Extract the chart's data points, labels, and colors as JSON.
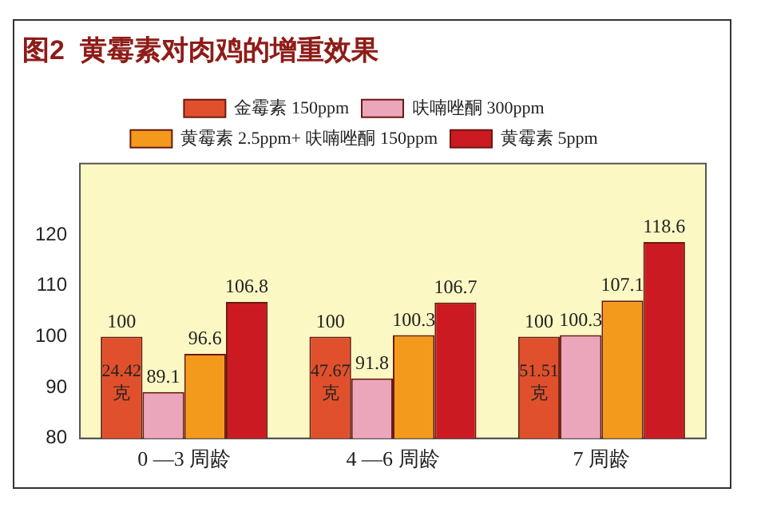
{
  "chart_data": {
    "type": "bar",
    "title": "图2  黄霉素对肉鸡的增重效果",
    "categories": [
      "0 —3 周龄",
      "4 —6 周龄",
      "7 周龄"
    ],
    "series": [
      {
        "name": "金霉素 150ppm",
        "color": "#e0502c",
        "values": [
          100,
          100,
          100
        ]
      },
      {
        "name": "呋喃唑酮 300ppm",
        "color": "#eba6bc",
        "values": [
          89.1,
          91.8,
          100.3
        ]
      },
      {
        "name": "黄霉素 2.5ppm+ 呋喃唑酮 150ppm",
        "color": "#f39a1c",
        "values": [
          96.6,
          100.3,
          107.1
        ]
      },
      {
        "name": "黄霉素 5ppm",
        "color": "#cc1a22",
        "values": [
          106.8,
          106.7,
          118.6
        ]
      }
    ],
    "ylim": [
      80,
      134
    ],
    "yticks": [
      80,
      90,
      100,
      110,
      120
    ],
    "grid": false,
    "legend": "top",
    "data_labels": true,
    "annotations": [
      {
        "text": "24.42 克",
        "x": "0 —3 周龄",
        "y": 91
      },
      {
        "text": "47.67 克",
        "x": "4 —6 周龄",
        "y": 91
      },
      {
        "text": "51.51 克",
        "x": "7 周龄",
        "y": 91
      }
    ]
  }
}
